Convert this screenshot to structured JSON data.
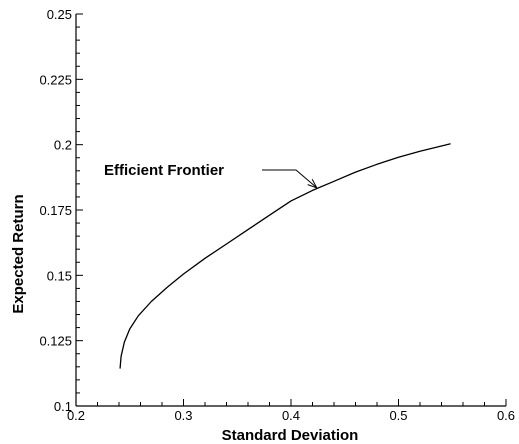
{
  "chart_data": {
    "type": "line",
    "title": "",
    "xlabel": "Standard Deviation",
    "ylabel": "Expected Return",
    "xlim": [
      0.2,
      0.6
    ],
    "ylim": [
      0.1,
      0.25
    ],
    "grid": false,
    "legend": "none",
    "x_ticks": [
      0.2,
      0.3,
      0.4,
      0.5,
      0.6
    ],
    "x_tick_labels": [
      "0.2",
      "0.3",
      "0.4",
      "0.5",
      "0.6"
    ],
    "y_ticks": [
      0.1,
      0.125,
      0.15,
      0.175,
      0.2,
      0.225,
      0.25
    ],
    "y_tick_labels": [
      "0.1",
      "0.125",
      "0.15",
      "0.175",
      "0.2",
      "0.225",
      "0.25"
    ],
    "series": [
      {
        "x": [
          0.241,
          0.242,
          0.245,
          0.25,
          0.258,
          0.27,
          0.285,
          0.3,
          0.32,
          0.34,
          0.36,
          0.38,
          0.4,
          0.42,
          0.44,
          0.46,
          0.48,
          0.5,
          0.52,
          0.548
        ],
        "y": [
          0.1145,
          0.119,
          0.1245,
          0.1295,
          0.1345,
          0.14,
          0.1455,
          0.1505,
          0.1565,
          0.162,
          0.1675,
          0.173,
          0.1785,
          0.1825,
          0.186,
          0.1895,
          0.1925,
          0.1952,
          0.1975,
          0.2003
        ],
        "color": "#000000"
      }
    ],
    "annotations": [
      {
        "text": "Efficient Frontier",
        "arrow_to": [
          0.424,
          0.1835
        ]
      }
    ]
  }
}
